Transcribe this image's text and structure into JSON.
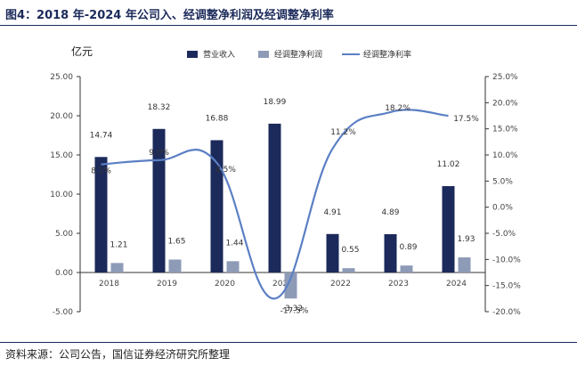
{
  "figure": {
    "title": "图4：2018 年-2024 年公司入、经调整净利润及经调整净利率",
    "source": "资料来源：公司公告，国信证券经济研究所整理"
  },
  "chart_data": {
    "type": "bar",
    "title": "图4：2018 年-2024 年公司入、经调整净利润及经调整净利率",
    "ylabel": "亿元",
    "categories": [
      "2018",
      "2019",
      "2020",
      "2021",
      "2022",
      "2023",
      "2024"
    ],
    "ylim": [
      -5,
      25
    ],
    "y_ticks": [
      "25.00",
      "20.00",
      "15.00",
      "10.00",
      "5.00",
      "0.00",
      "-5.00"
    ],
    "y2lim": [
      -20,
      25
    ],
    "y2_ticks": [
      "25.0%",
      "20.0%",
      "15.0%",
      "10.0%",
      "5.0%",
      "0.0%",
      "-5.0%",
      "-10.0%",
      "-15.0%",
      "-20.0%"
    ],
    "series": [
      {
        "name": "营业收入",
        "type": "bar",
        "axis": "left",
        "color": "#1b2a5a",
        "values": [
          14.74,
          18.32,
          16.88,
          18.99,
          4.91,
          4.89,
          11.02
        ],
        "labels": [
          "14.74",
          "18.32",
          "16.88",
          "18.99",
          "4.91",
          "4.89",
          "11.02"
        ]
      },
      {
        "name": "经调整净利润",
        "type": "bar",
        "axis": "left",
        "color": "#8e9bb7",
        "values": [
          1.21,
          1.65,
          1.44,
          -3.32,
          0.55,
          0.89,
          1.93
        ],
        "labels": [
          "1.21",
          "1.65",
          "1.44",
          "-3.32",
          "0.55",
          "0.89",
          "1.93"
        ]
      },
      {
        "name": "经调整净利率",
        "type": "line",
        "axis": "right",
        "color": "#5b7fc4",
        "values": [
          8.2,
          9.0,
          8.5,
          -17.5,
          11.2,
          18.2,
          17.5
        ],
        "labels": [
          "8.2%",
          "9.0%",
          "8.5%",
          "-17.5%",
          "11.2%",
          "18.2%",
          "17.5%"
        ]
      }
    ],
    "legend_position": "top",
    "grid": false
  }
}
